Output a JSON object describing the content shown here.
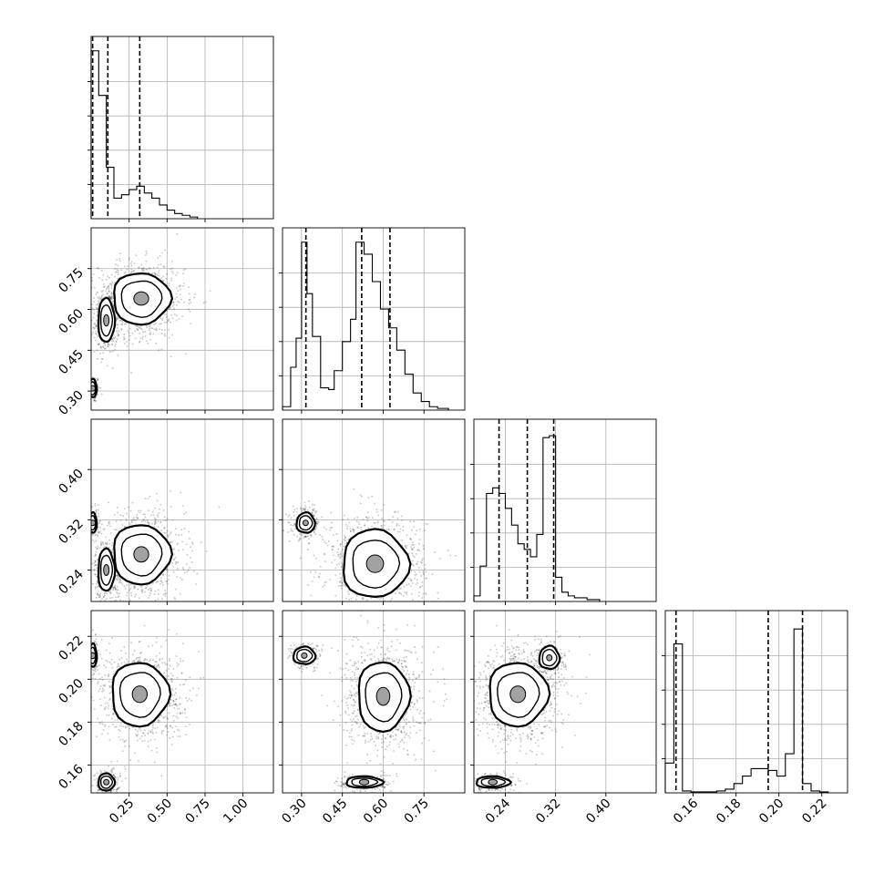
{
  "figure": {
    "kind": "corner plot",
    "grid": true,
    "n_params": 4
  },
  "chart_data": [
    {
      "type": "histogram",
      "panel": "p0-hist",
      "xlim": [
        0.0,
        1.2
      ],
      "tick_values": [
        0.25,
        0.5,
        0.75,
        1.0
      ],
      "bin_edges": [
        0.0,
        0.05,
        0.1,
        0.15,
        0.2,
        0.25,
        0.3,
        0.35,
        0.4,
        0.45,
        0.5,
        0.55,
        0.6,
        0.65,
        0.7
      ],
      "counts": [
        0.98,
        0.72,
        0.3,
        0.12,
        0.14,
        0.17,
        0.19,
        0.15,
        0.12,
        0.08,
        0.05,
        0.03,
        0.02,
        0.01
      ],
      "quantiles": [
        0.01,
        0.11,
        0.32
      ],
      "ymax": 1.0
    },
    {
      "type": "histogram",
      "panel": "p1-hist",
      "xlim": [
        0.23,
        0.9
      ],
      "tick_values": [
        0.3,
        0.45,
        0.6,
        0.75
      ],
      "bin_edges": [
        0.23,
        0.26,
        0.28,
        0.3,
        0.32,
        0.34,
        0.37,
        0.4,
        0.42,
        0.45,
        0.48,
        0.5,
        0.53,
        0.56,
        0.59,
        0.62,
        0.65,
        0.68,
        0.71,
        0.74,
        0.77,
        0.8,
        0.84
      ],
      "counts": [
        0.02,
        0.25,
        0.42,
        0.98,
        0.68,
        0.43,
        0.13,
        0.12,
        0.23,
        0.4,
        0.53,
        0.98,
        0.91,
        0.75,
        0.59,
        0.48,
        0.35,
        0.21,
        0.1,
        0.05,
        0.02,
        0.01
      ],
      "quantiles": [
        0.316,
        0.521,
        0.625
      ],
      "ymax": 1.0
    },
    {
      "type": "histogram",
      "panel": "p2-hist",
      "xlim": [
        0.19,
        0.48
      ],
      "tick_values": [
        0.24,
        0.32,
        0.4
      ],
      "bin_edges": [
        0.19,
        0.2,
        0.21,
        0.22,
        0.23,
        0.24,
        0.25,
        0.26,
        0.27,
        0.28,
        0.29,
        0.3,
        0.31,
        0.32,
        0.33,
        0.34,
        0.35,
        0.36,
        0.37,
        0.38,
        0.39
      ],
      "counts": [
        0.03,
        0.19,
        0.58,
        0.61,
        0.58,
        0.5,
        0.41,
        0.31,
        0.28,
        0.24,
        0.36,
        0.88,
        0.89,
        0.13,
        0.05,
        0.03,
        0.02,
        0.02,
        0.01,
        0.01
      ],
      "quantiles": [
        0.23,
        0.275,
        0.317
      ],
      "ymax": 0.92
    },
    {
      "type": "histogram",
      "panel": "p3-hist",
      "xlim": [
        0.147,
        0.232
      ],
      "tick_values": [
        0.16,
        0.18,
        0.2,
        0.22
      ],
      "bin_edges": [
        0.147,
        0.151,
        0.155,
        0.159,
        0.163,
        0.167,
        0.171,
        0.175,
        0.179,
        0.183,
        0.187,
        0.191,
        0.195,
        0.199,
        0.203,
        0.207,
        0.211,
        0.215,
        0.219,
        0.223
      ],
      "counts": [
        0.16,
        0.8,
        0.01,
        0.005,
        0.005,
        0.005,
        0.01,
        0.02,
        0.05,
        0.09,
        0.13,
        0.13,
        0.12,
        0.09,
        0.21,
        0.88,
        0.05,
        0.01,
        0.005
      ],
      "quantiles": [
        0.152,
        0.195,
        0.211
      ],
      "ymax": 0.92
    },
    {
      "type": "scatter-contour",
      "panel": "p1-vs-p0",
      "xlim": [
        0.0,
        1.2
      ],
      "ylim": [
        0.23,
        0.9
      ],
      "x_ticks": [
        0.25,
        0.5,
        0.75,
        1.0
      ],
      "y_ticks": [
        0.3,
        0.45,
        0.6,
        0.75
      ],
      "clusters": [
        {
          "x": 0.01,
          "y": 0.31,
          "sx": 0.02,
          "sy": 0.025,
          "n": 160
        },
        {
          "x": 0.1,
          "y": 0.56,
          "sx": 0.04,
          "sy": 0.06,
          "n": 420
        },
        {
          "x": 0.33,
          "y": 0.64,
          "sx": 0.14,
          "sy": 0.07,
          "n": 900
        }
      ]
    },
    {
      "type": "scatter-contour",
      "panel": "p2-vs-p0",
      "xlim": [
        0.0,
        1.2
      ],
      "ylim": [
        0.19,
        0.48
      ],
      "x_ticks": [
        0.25,
        0.5,
        0.75,
        1.0
      ],
      "y_ticks": [
        0.24,
        0.32,
        0.4
      ],
      "clusters": [
        {
          "x": 0.01,
          "y": 0.315,
          "sx": 0.02,
          "sy": 0.012,
          "n": 160
        },
        {
          "x": 0.1,
          "y": 0.24,
          "sx": 0.04,
          "sy": 0.025,
          "n": 400
        },
        {
          "x": 0.33,
          "y": 0.265,
          "sx": 0.14,
          "sy": 0.035,
          "n": 900
        }
      ]
    },
    {
      "type": "scatter-contour",
      "panel": "p3-vs-p0",
      "xlim": [
        0.0,
        1.2
      ],
      "ylim": [
        0.147,
        0.232
      ],
      "x_ticks": [
        0.25,
        0.5,
        0.75,
        1.0
      ],
      "y_ticks": [
        0.16,
        0.18,
        0.2,
        0.22
      ],
      "clusters": [
        {
          "x": 0.01,
          "y": 0.211,
          "sx": 0.02,
          "sy": 0.004,
          "n": 140
        },
        {
          "x": 0.1,
          "y": 0.152,
          "sx": 0.04,
          "sy": 0.003,
          "n": 260
        },
        {
          "x": 0.32,
          "y": 0.193,
          "sx": 0.14,
          "sy": 0.011,
          "n": 950
        }
      ]
    },
    {
      "type": "scatter-contour",
      "panel": "p2-vs-p1",
      "xlim": [
        0.23,
        0.9
      ],
      "ylim": [
        0.19,
        0.48
      ],
      "x_ticks": [
        0.3,
        0.45,
        0.6,
        0.75
      ],
      "y_ticks": [
        0.24,
        0.32,
        0.4
      ],
      "clusters": [
        {
          "x": 0.315,
          "y": 0.315,
          "sx": 0.025,
          "sy": 0.012,
          "n": 300
        },
        {
          "x": 0.57,
          "y": 0.25,
          "sx": 0.09,
          "sy": 0.04,
          "n": 1000
        }
      ]
    },
    {
      "type": "scatter-contour",
      "panel": "p3-vs-p1",
      "xlim": [
        0.23,
        0.9
      ],
      "ylim": [
        0.147,
        0.232
      ],
      "x_ticks": [
        0.3,
        0.45,
        0.6,
        0.75
      ],
      "y_ticks": [
        0.16,
        0.18,
        0.2,
        0.22
      ],
      "clusters": [
        {
          "x": 0.31,
          "y": 0.211,
          "sx": 0.03,
          "sy": 0.003,
          "n": 200
        },
        {
          "x": 0.53,
          "y": 0.152,
          "sx": 0.05,
          "sy": 0.002,
          "n": 240
        },
        {
          "x": 0.6,
          "y": 0.192,
          "sx": 0.07,
          "sy": 0.012,
          "n": 1000
        }
      ]
    },
    {
      "type": "scatter-contour",
      "panel": "p3-vs-p2",
      "xlim": [
        0.19,
        0.48
      ],
      "ylim": [
        0.147,
        0.232
      ],
      "x_ticks": [
        0.24,
        0.32,
        0.4
      ],
      "y_ticks": [
        0.16,
        0.18,
        0.2,
        0.22
      ],
      "clusters": [
        {
          "x": 0.31,
          "y": 0.21,
          "sx": 0.012,
          "sy": 0.004,
          "n": 200
        },
        {
          "x": 0.22,
          "y": 0.152,
          "sx": 0.02,
          "sy": 0.002,
          "n": 260
        },
        {
          "x": 0.26,
          "y": 0.193,
          "sx": 0.035,
          "sy": 0.011,
          "n": 1000
        }
      ]
    }
  ]
}
